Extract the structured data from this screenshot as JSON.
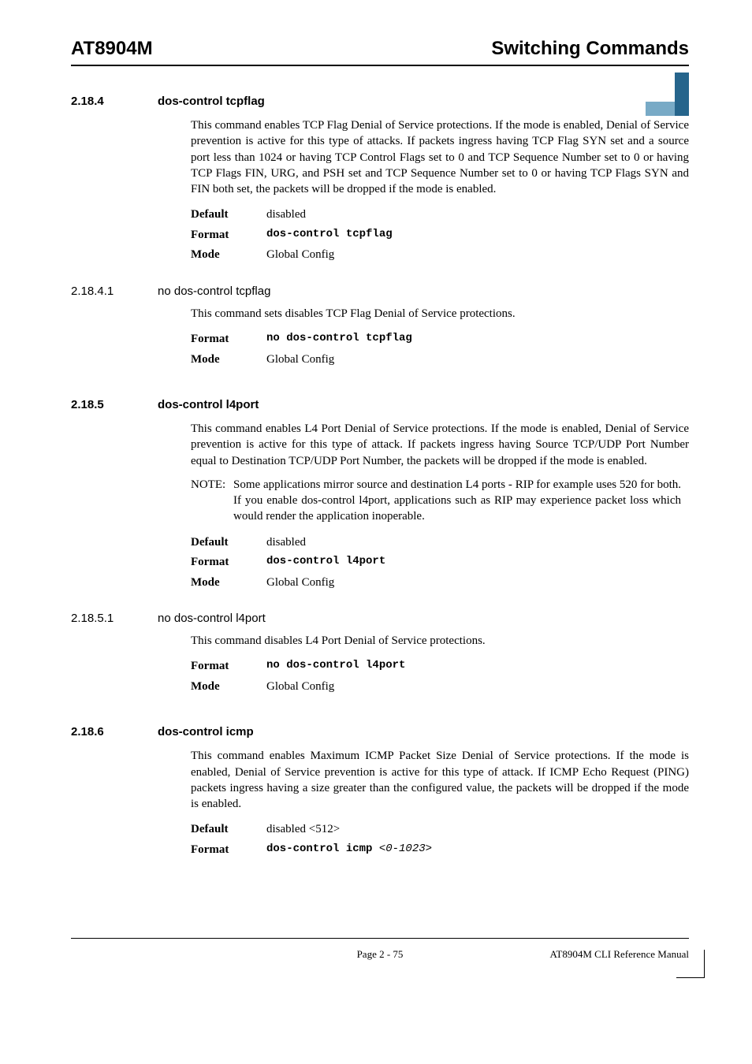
{
  "header": {
    "left": "AT8904M",
    "right": "Switching Commands"
  },
  "sections": {
    "s1": {
      "num": "2.18.4",
      "title": "dos-control tcpflag",
      "body": "This command enables TCP Flag Denial of Service protections. If the mode is enabled, Denial of Service prevention is active for this type of attacks. If packets ingress having TCP Flag SYN set and a source port less than 1024 or having TCP Control Flags set to 0 and TCP Sequence Number set to 0 or having TCP Flags FIN, URG, and PSH set and TCP Sequence Number set to 0 or having TCP Flags SYN and FIN both set, the packets will be dropped if the mode is enabled.",
      "default": "disabled",
      "format_cmd": "dos-control tcpflag",
      "mode": "Global Config"
    },
    "s1n": {
      "num": "2.18.4.1",
      "title": "no dos-control tcpflag",
      "body": "This command sets disables TCP Flag Denial of Service protections.",
      "format_cmd": "no dos-control tcpflag",
      "mode": "Global Config"
    },
    "s2": {
      "num": "2.18.5",
      "title": "dos-control l4port",
      "body": "This command enables L4 Port Denial of Service protections. If the mode is enabled, Denial of Service prevention is active for this type of attack. If packets ingress having Source TCP/UDP Port Number equal to Destination TCP/UDP Port Number, the packets will be dropped if the mode is enabled.",
      "note_label": "NOTE:",
      "note": "Some applications mirror source and destination L4 ports - RIP for example uses 520 for both. If you enable dos-control l4port, applications such as RIP may experience packet loss which would render the application inoperable.",
      "default": "disabled",
      "format_cmd": "dos-control l4port",
      "mode": "Global Config"
    },
    "s2n": {
      "num": "2.18.5.1",
      "title": "no dos-control l4port",
      "body": "This command disables L4 Port Denial of Service protections.",
      "format_cmd": "no dos-control l4port",
      "mode": "Global Config"
    },
    "s3": {
      "num": "2.18.6",
      "title": "dos-control icmp",
      "body": "This command enables Maximum ICMP Packet Size Denial of Service protections. If the mode is enabled, Denial of Service prevention is active for this type of attack. If ICMP Echo Request (PING) packets ingress having a size greater than the configured value, the packets will be dropped if the mode is enabled.",
      "default": "disabled <512>",
      "format_cmd": "dos-control icmp ",
      "format_arg": "<0-1023>"
    }
  },
  "labels": {
    "default": "Default",
    "format": "Format",
    "mode": "Mode"
  },
  "footer": {
    "center": "Page 2 - 75",
    "right": "AT8904M CLI Reference Manual"
  }
}
